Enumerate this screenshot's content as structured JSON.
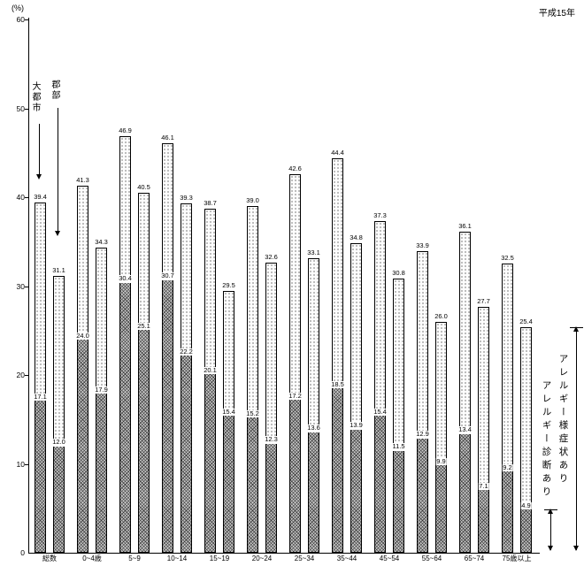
{
  "meta": {
    "year_label": "平成15年",
    "unit_label": "(%)"
  },
  "legend": {
    "city": "大都市",
    "rural": "郡部"
  },
  "annotations": {
    "symptoms": "アレルギー様症状あり",
    "diagnosis": "アレルギー診断あり"
  },
  "chart_data": {
    "type": "bar",
    "title": "",
    "xlabel": "",
    "ylabel": "(%)",
    "ylim": [
      0,
      60
    ],
    "yticks": [
      0,
      10,
      20,
      30,
      40,
      50,
      60
    ],
    "grid": false,
    "bar_style": "paired-stacked-subset",
    "note": "Each age group has two bars (大都市, 郡部). Full bar height = アレルギー様症状あり, hatched lower segment = アレルギー診断あり.",
    "categories": [
      "総数",
      "0~4歳",
      "5~9",
      "10~14",
      "15~19",
      "20~24",
      "25~34",
      "35~44",
      "45~54",
      "55~64",
      "65~74",
      "75歳以上"
    ],
    "series": [
      {
        "name": "大都市",
        "measure": "アレルギー様症状あり",
        "values": [
          39.4,
          41.3,
          46.9,
          46.1,
          38.7,
          39.0,
          42.6,
          44.4,
          37.3,
          33.9,
          36.1,
          32.5
        ]
      },
      {
        "name": "大都市",
        "measure": "アレルギー診断あり",
        "values": [
          17.1,
          24.0,
          30.4,
          30.7,
          20.1,
          15.2,
          17.2,
          18.5,
          15.4,
          12.9,
          13.4,
          9.2
        ]
      },
      {
        "name": "郡部",
        "measure": "アレルギー様症状あり",
        "values": [
          31.1,
          34.3,
          40.5,
          39.3,
          29.5,
          32.6,
          33.1,
          34.8,
          30.8,
          26.0,
          27.7,
          25.4
        ]
      },
      {
        "name": "郡部",
        "measure": "アレルギー診断あり",
        "values": [
          12.0,
          17.9,
          25.1,
          22.2,
          15.4,
          12.3,
          13.6,
          13.9,
          11.5,
          9.9,
          7.1,
          4.9
        ]
      }
    ]
  }
}
